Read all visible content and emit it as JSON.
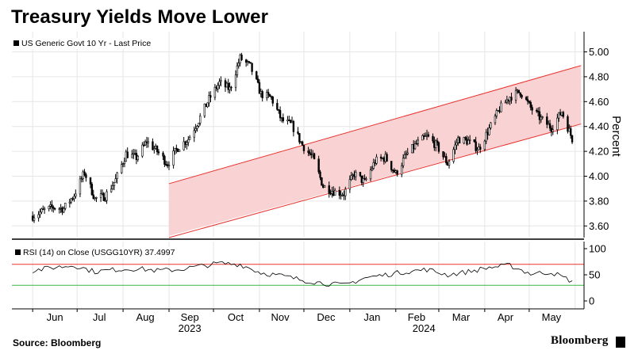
{
  "title": "Treasury Yields Move Lower",
  "legend_main": "US Generic Govt 10 Yr - Last Price",
  "legend_rsi": "RSI (14)  on Close (USGG10YR) 37.4997",
  "y_axis_label": "Percent",
  "source": "Source: Bloomberg",
  "brand": "Bloomberg",
  "colors": {
    "channel_fill": "#f9d3d3",
    "channel_line": "#e8322e",
    "rsi_upper": "#e8322e",
    "rsi_lower": "#39b54a",
    "candles": "#000000"
  },
  "chart_data": [
    {
      "type": "line",
      "name": "US Generic Govt 10 Yr - Last Price",
      "ylim": [
        3.5,
        5.1
      ],
      "ytick_labels": [
        "3.60",
        "3.80",
        "4.00",
        "4.20",
        "4.40",
        "4.60",
        "4.80",
        "5.00"
      ],
      "x_month_labels": [
        "Jun",
        "Jul",
        "Aug",
        "Sep",
        "Oct",
        "Nov",
        "Dec",
        "Jan",
        "Feb",
        "Mar",
        "Apr",
        "May"
      ],
      "x_year_labels": [
        "2023",
        "2024"
      ],
      "x": [
        "2023-06-01",
        "2023-06-08",
        "2023-06-15",
        "2023-06-22",
        "2023-06-29",
        "2023-07-06",
        "2023-07-13",
        "2023-07-20",
        "2023-07-27",
        "2023-08-03",
        "2023-08-10",
        "2023-08-17",
        "2023-08-24",
        "2023-08-31",
        "2023-09-07",
        "2023-09-14",
        "2023-09-21",
        "2023-09-28",
        "2023-10-05",
        "2023-10-12",
        "2023-10-19",
        "2023-10-26",
        "2023-11-02",
        "2023-11-09",
        "2023-11-16",
        "2023-11-23",
        "2023-11-30",
        "2023-12-07",
        "2023-12-14",
        "2023-12-21",
        "2023-12-28",
        "2024-01-04",
        "2024-01-11",
        "2024-01-18",
        "2024-01-25",
        "2024-02-01",
        "2024-02-08",
        "2024-02-15",
        "2024-02-22",
        "2024-02-29",
        "2024-03-07",
        "2024-03-14",
        "2024-03-21",
        "2024-03-28",
        "2024-04-04",
        "2024-04-11",
        "2024-04-18",
        "2024-04-25",
        "2024-05-02",
        "2024-05-09",
        "2024-05-16",
        "2024-05-23",
        "2024-05-30"
      ],
      "values": [
        3.68,
        3.72,
        3.75,
        3.74,
        3.85,
        4.03,
        3.82,
        3.84,
        3.97,
        4.18,
        4.15,
        4.28,
        4.2,
        4.1,
        4.23,
        4.3,
        4.45,
        4.62,
        4.75,
        4.7,
        4.95,
        4.88,
        4.66,
        4.63,
        4.45,
        4.41,
        4.25,
        4.15,
        3.92,
        3.88,
        3.86,
        4.02,
        3.95,
        4.12,
        4.15,
        4.02,
        4.17,
        4.26,
        4.32,
        4.24,
        4.1,
        4.3,
        4.28,
        4.22,
        4.38,
        4.54,
        4.64,
        4.68,
        4.55,
        4.46,
        4.39,
        4.52,
        4.3
      ],
      "channel": {
        "start_date": "2023-09-01",
        "end_date": "2024-06-05",
        "lower": [
          3.52,
          4.42
        ],
        "upper": [
          3.94,
          4.89
        ]
      }
    },
    {
      "type": "line",
      "name": "RSI (14)  on Close (USGG10YR) 37.4997",
      "ylim": [
        -5,
        105
      ],
      "ytick_labels": [
        "0",
        "50",
        "100"
      ],
      "reference_lines": [
        70,
        30
      ],
      "last_value": 37.4997,
      "x": [
        "2023-06-01",
        "2023-06-15",
        "2023-06-29",
        "2023-07-13",
        "2023-07-27",
        "2023-08-10",
        "2023-08-24",
        "2023-09-07",
        "2023-09-21",
        "2023-10-05",
        "2023-10-19",
        "2023-11-02",
        "2023-11-16",
        "2023-11-30",
        "2023-12-14",
        "2023-12-28",
        "2024-01-11",
        "2024-01-25",
        "2024-02-08",
        "2024-02-22",
        "2024-03-07",
        "2024-03-21",
        "2024-04-04",
        "2024-04-18",
        "2024-05-02",
        "2024-05-16",
        "2024-05-30"
      ],
      "values": [
        58,
        64,
        68,
        56,
        60,
        62,
        58,
        60,
        66,
        72,
        70,
        54,
        48,
        40,
        34,
        30,
        44,
        50,
        56,
        60,
        50,
        56,
        64,
        68,
        52,
        55,
        37.5
      ]
    }
  ]
}
